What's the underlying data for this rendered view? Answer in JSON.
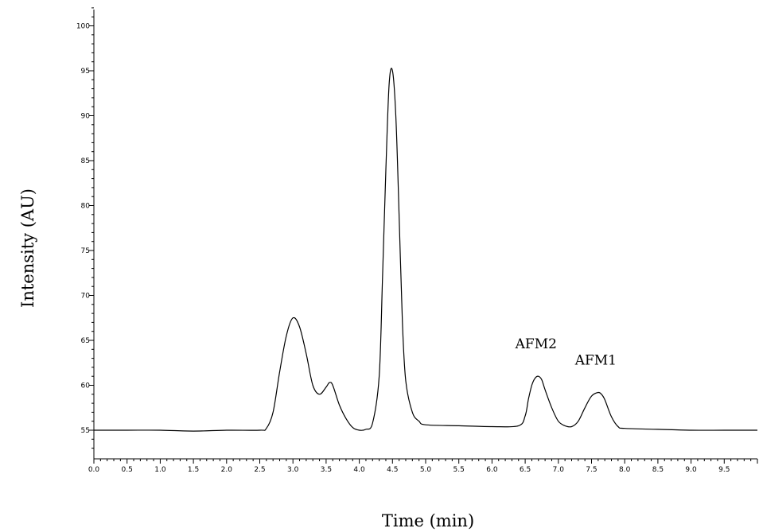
{
  "chart_data": {
    "type": "line",
    "xlabel": "Time (min)",
    "ylabel": "Intensity (AU)",
    "xlim": [
      0,
      10
    ],
    "ylim": [
      53,
      102
    ],
    "grid": false,
    "x_ticks": [
      "0.0",
      "0.5",
      "1.0",
      "1.5",
      "2.0",
      "2.5",
      "3.0",
      "3.5",
      "4.0",
      "4.5",
      "5.0",
      "5.5",
      "6.0",
      "6.5",
      "7.0",
      "7.5",
      "8.0",
      "8.5",
      "9.0",
      "9.5"
    ],
    "y_ticks": [
      "55",
      "60",
      "65",
      "70",
      "75",
      "80",
      "85",
      "90",
      "95",
      "100"
    ],
    "series": [
      {
        "x": [
          0.0,
          0.5,
          1.0,
          1.5,
          2.0,
          2.5,
          2.6,
          2.7,
          2.8,
          2.9,
          3.0,
          3.1,
          3.2,
          3.3,
          3.4,
          3.5,
          3.55,
          3.6,
          3.7,
          3.8,
          3.9,
          4.0,
          4.1,
          4.2,
          4.3,
          4.35,
          4.4,
          4.45,
          4.5,
          4.55,
          4.6,
          4.65,
          4.7,
          4.8,
          4.9,
          5.0,
          5.5,
          6.0,
          6.4,
          6.5,
          6.55,
          6.6,
          6.65,
          6.7,
          6.75,
          6.8,
          6.9,
          7.0,
          7.1,
          7.2,
          7.3,
          7.4,
          7.5,
          7.6,
          7.65,
          7.7,
          7.8,
          7.9,
          8.0,
          8.5,
          9.0,
          9.5,
          10.0
        ],
        "y": [
          55.0,
          55.0,
          55.0,
          54.9,
          55.0,
          55.0,
          55.2,
          57.0,
          61.5,
          65.5,
          67.5,
          66.5,
          63.5,
          60.0,
          59.0,
          59.8,
          60.3,
          60.0,
          57.8,
          56.3,
          55.3,
          55.0,
          55.1,
          55.8,
          61.0,
          72.0,
          84.0,
          93.5,
          95.0,
          90.0,
          79.0,
          67.0,
          60.5,
          57.0,
          56.0,
          55.6,
          55.5,
          55.4,
          55.5,
          56.6,
          58.5,
          60.0,
          60.8,
          61.0,
          60.6,
          59.5,
          57.5,
          56.0,
          55.5,
          55.4,
          56.0,
          57.5,
          58.8,
          59.2,
          59.0,
          58.4,
          56.5,
          55.4,
          55.2,
          55.1,
          55.0,
          55.0,
          55.0
        ]
      }
    ],
    "annotations": [
      {
        "text": "AFM2",
        "x": 6.7,
        "y": 61.0
      },
      {
        "text": "AFM1",
        "x": 7.6,
        "y": 59.2
      }
    ]
  }
}
